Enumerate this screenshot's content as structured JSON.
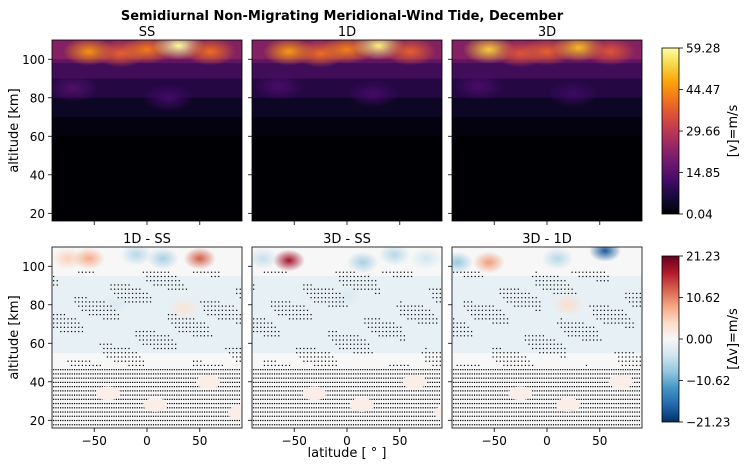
{
  "figure": {
    "title": "Semidiurnal Non-Migrating Meridional-Wind Tide, December"
  },
  "colors": {
    "inferno": [
      "#000004",
      "#160b39",
      "#420a68",
      "#6a176e",
      "#932667",
      "#bc3754",
      "#dd513a",
      "#f37819",
      "#fca50a",
      "#f6d746",
      "#fcffa4"
    ],
    "rdbu": [
      "#053061",
      "#2166ac",
      "#4393c3",
      "#92c5de",
      "#d1e5f0",
      "#f7f7f7",
      "#fddbc7",
      "#f4a582",
      "#d6604d",
      "#b2182b",
      "#67001f"
    ]
  },
  "chart_data": [
    {
      "type": "heatmap",
      "title": "SS",
      "xlabel": "",
      "ylabel": "altitude [km]",
      "xlim": [
        -90,
        90
      ],
      "ylim": [
        16,
        110
      ],
      "xticks": [
        "",
        "",
        ""
      ],
      "yticks": [
        "20",
        "40",
        "60",
        "80",
        "100"
      ],
      "colormap": "inferno",
      "zlim": [
        0.04,
        59.28
      ],
      "features": [
        {
          "lat": -55,
          "alt": 104,
          "value": 45
        },
        {
          "lat": -25,
          "alt": 103,
          "value": 38
        },
        {
          "lat": 0,
          "alt": 105,
          "value": 42
        },
        {
          "lat": 30,
          "alt": 107,
          "value": 59
        },
        {
          "lat": 60,
          "alt": 104,
          "value": 40
        },
        {
          "lat": -70,
          "alt": 85,
          "value": 14
        },
        {
          "lat": 20,
          "alt": 80,
          "value": 12
        }
      ]
    },
    {
      "type": "heatmap",
      "title": "1D",
      "xlabel": "",
      "ylabel": "",
      "xlim": [
        -90,
        90
      ],
      "ylim": [
        16,
        110
      ],
      "xticks": [
        "",
        "",
        ""
      ],
      "yticks": [
        "",
        "",
        "",
        "",
        ""
      ],
      "colormap": "inferno",
      "zlim": [
        0.04,
        59.28
      ],
      "features": [
        {
          "lat": -55,
          "alt": 104,
          "value": 46
        },
        {
          "lat": -25,
          "alt": 103,
          "value": 40
        },
        {
          "lat": 0,
          "alt": 105,
          "value": 43
        },
        {
          "lat": 30,
          "alt": 107,
          "value": 57
        },
        {
          "lat": 60,
          "alt": 104,
          "value": 38
        },
        {
          "lat": -65,
          "alt": 86,
          "value": 13
        },
        {
          "lat": 25,
          "alt": 82,
          "value": 12
        }
      ]
    },
    {
      "type": "heatmap",
      "title": "3D",
      "xlabel": "",
      "ylabel": "",
      "xlim": [
        -90,
        90
      ],
      "ylim": [
        16,
        110
      ],
      "xticks": [
        "",
        "",
        ""
      ],
      "yticks": [
        "",
        "",
        "",
        "",
        ""
      ],
      "colormap": "inferno",
      "zlim": [
        0.04,
        59.28
      ],
      "features": [
        {
          "lat": -55,
          "alt": 105,
          "value": 52
        },
        {
          "lat": -25,
          "alt": 103,
          "value": 36
        },
        {
          "lat": 0,
          "alt": 104,
          "value": 38
        },
        {
          "lat": 30,
          "alt": 106,
          "value": 50
        },
        {
          "lat": 60,
          "alt": 104,
          "value": 36
        },
        {
          "lat": -65,
          "alt": 86,
          "value": 13
        },
        {
          "lat": 25,
          "alt": 82,
          "value": 11
        }
      ]
    },
    {
      "type": "heatmap",
      "title": "1D - SS",
      "xlabel": "",
      "ylabel": "altitude [km]",
      "xlim": [
        -90,
        90
      ],
      "ylim": [
        16,
        110
      ],
      "xticks": [
        "−50",
        "0",
        "50"
      ],
      "yticks": [
        "20",
        "40",
        "60",
        "80",
        "100"
      ],
      "colormap": "RdBu_r",
      "zlim": [
        -21.23,
        21.23
      ],
      "features": [
        {
          "lat": -75,
          "alt": 104,
          "value": 5
        },
        {
          "lat": -55,
          "alt": 104,
          "value": 8
        },
        {
          "lat": -10,
          "alt": 106,
          "value": -6
        },
        {
          "lat": 15,
          "alt": 104,
          "value": -7
        },
        {
          "lat": 50,
          "alt": 104,
          "value": 13
        },
        {
          "lat": -30,
          "alt": 80,
          "value": -3
        },
        {
          "lat": 35,
          "alt": 78,
          "value": 3
        }
      ]
    },
    {
      "type": "heatmap",
      "title": "3D - SS",
      "xlabel": "",
      "ylabel": "",
      "xlim": [
        -90,
        90
      ],
      "ylim": [
        16,
        110
      ],
      "xticks": [
        "−50",
        "0",
        "50"
      ],
      "yticks": [
        "",
        "",
        "",
        "",
        ""
      ],
      "colormap": "RdBu_r",
      "zlim": [
        -21.23,
        21.23
      ],
      "features": [
        {
          "lat": -55,
          "alt": 103,
          "value": 18
        },
        {
          "lat": -80,
          "alt": 104,
          "value": -5
        },
        {
          "lat": 15,
          "alt": 102,
          "value": -7
        },
        {
          "lat": 45,
          "alt": 106,
          "value": -6
        },
        {
          "lat": 75,
          "alt": 104,
          "value": -4
        },
        {
          "lat": 0,
          "alt": 84,
          "value": -3
        }
      ]
    },
    {
      "type": "heatmap",
      "title": "3D - 1D",
      "xlabel": "",
      "ylabel": "",
      "xlim": [
        -90,
        90
      ],
      "ylim": [
        16,
        110
      ],
      "xticks": [
        "−50",
        "0",
        "50"
      ],
      "yticks": [
        "",
        "",
        "",
        "",
        ""
      ],
      "colormap": "RdBu_r",
      "zlim": [
        -21.23,
        21.23
      ],
      "features": [
        {
          "lat": -55,
          "alt": 102,
          "value": 9
        },
        {
          "lat": -85,
          "alt": 102,
          "value": -8
        },
        {
          "lat": 10,
          "alt": 104,
          "value": -6
        },
        {
          "lat": 55,
          "alt": 108,
          "value": -18
        },
        {
          "lat": 20,
          "alt": 80,
          "value": 4
        }
      ]
    }
  ],
  "colorbars": [
    {
      "ticks": [
        "59.28",
        "44.47",
        "29.66",
        "14.85",
        "0.04"
      ],
      "label": "[v]=m/s"
    },
    {
      "ticks": [
        "21.23",
        "10.62",
        "0.00",
        "−10.62",
        "−21.23"
      ],
      "label": "[Δv]=m/s"
    }
  ],
  "axis": {
    "xlabel": "latitude [$^\\circ$]",
    "xlabel_display": "latitude [ ° ]"
  }
}
